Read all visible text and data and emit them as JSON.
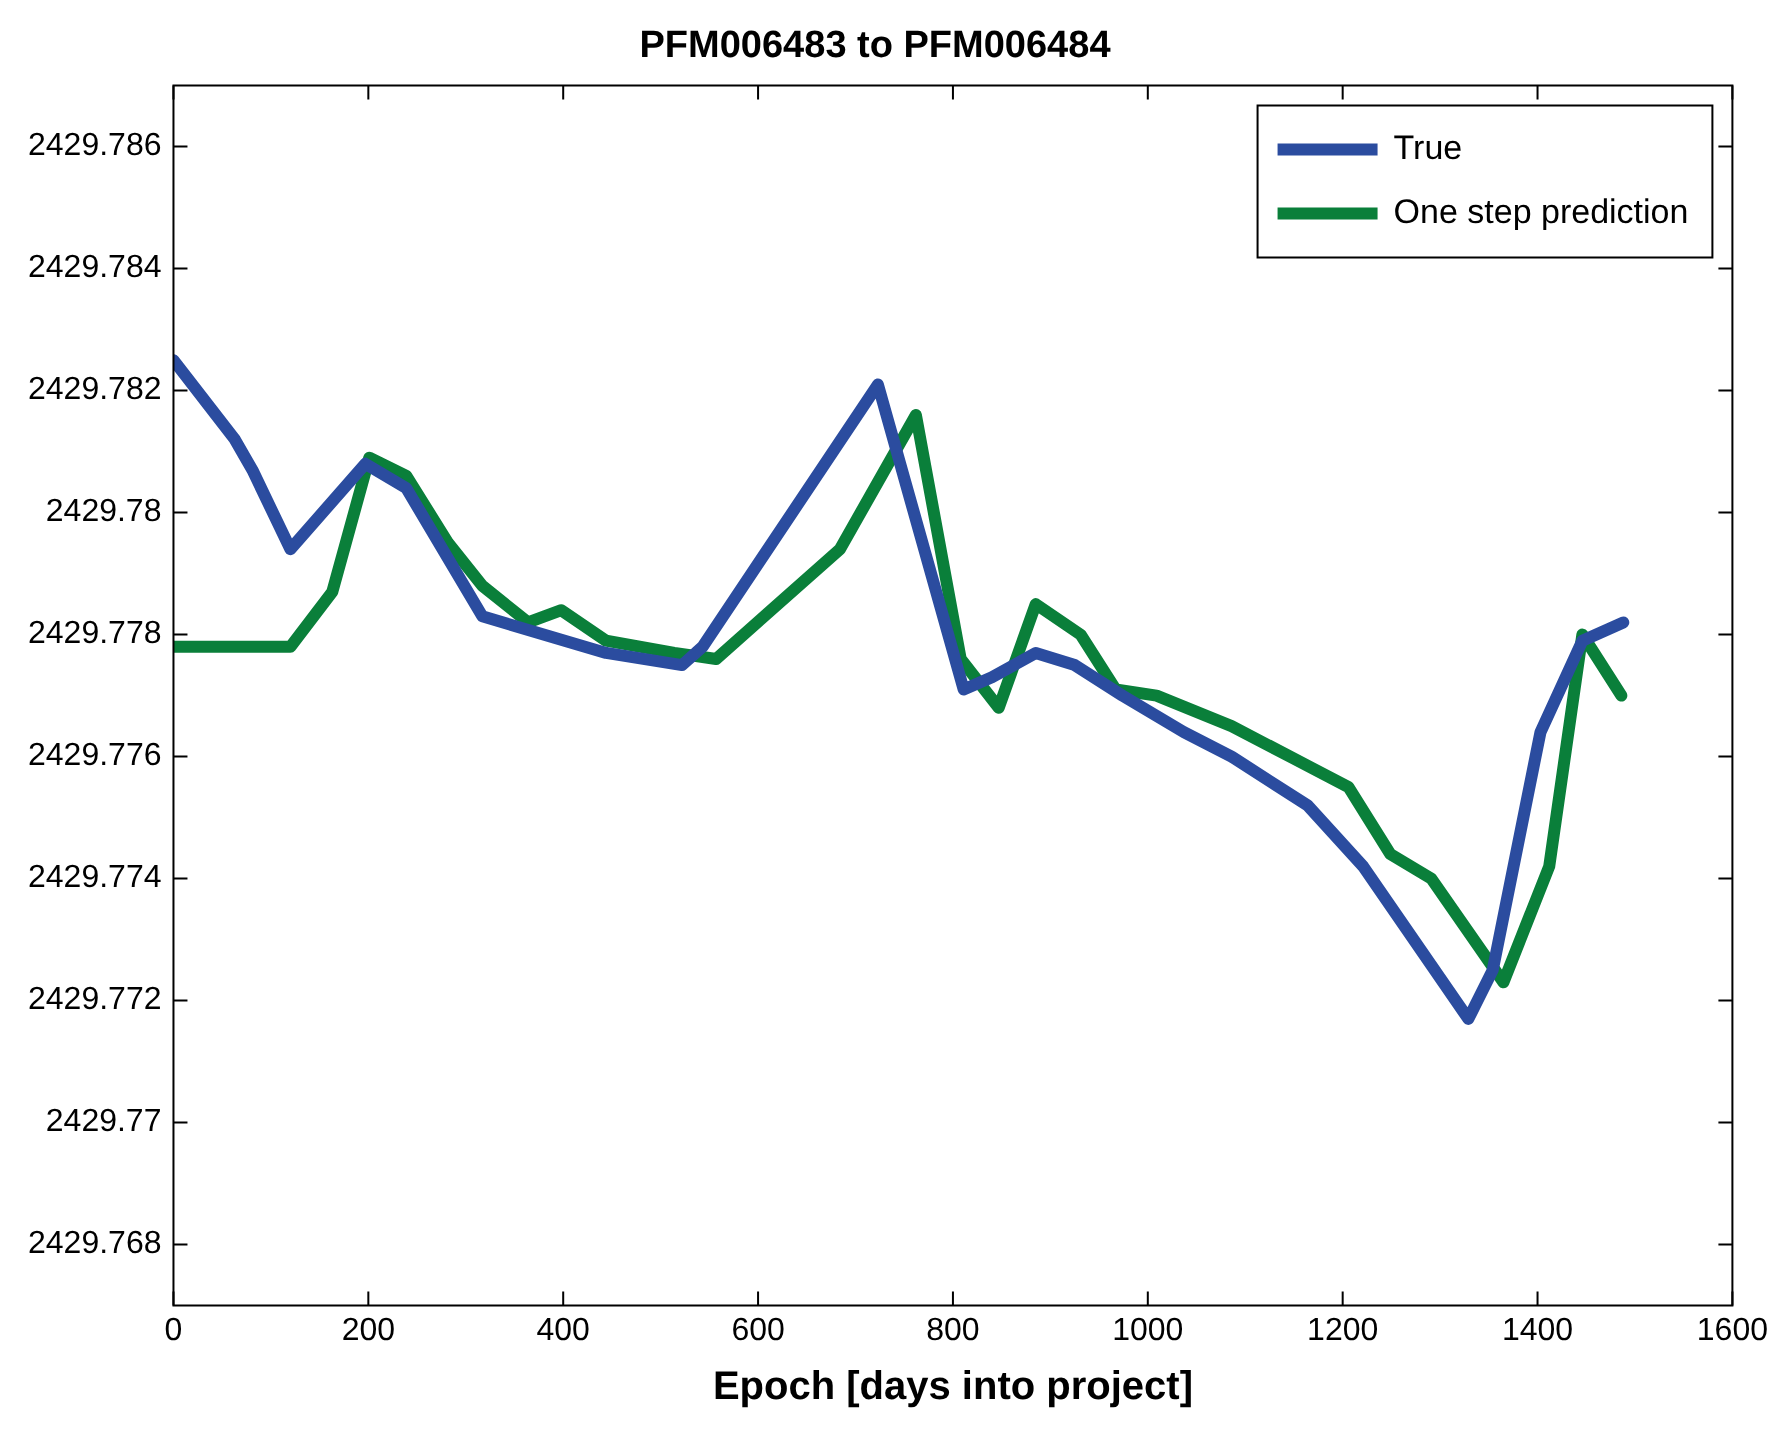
{
  "chart_data": {
    "type": "line",
    "title": "PFM006483 to PFM006484",
    "xlabel": "Epoch [days into project]",
    "xlim": [
      0,
      1600
    ],
    "xticks": [
      0,
      200,
      400,
      600,
      800,
      1000,
      1200,
      1400,
      1600
    ],
    "ylim": [
      2429.767,
      2429.787
    ],
    "yticks": [
      2429.768,
      2429.77,
      2429.772,
      2429.774,
      2429.776,
      2429.778,
      2429.78,
      2429.782,
      2429.784,
      2429.786
    ],
    "grid": false,
    "legend": "top right",
    "marker": "none",
    "line_style": "solid",
    "series": [
      {
        "name": "True",
        "color": "#2b4c9f",
        "x": [
          0,
          63,
          81,
          120,
          197,
          239,
          317,
          444,
          522,
          543,
          723,
          811,
          840,
          885,
          925,
          974,
          1037,
          1086,
          1164,
          1221,
          1329,
          1354,
          1403,
          1446,
          1488
        ],
        "values": [
          2429.7825,
          2429.7812,
          2429.7807,
          2429.7794,
          2429.7808,
          2429.7804,
          2429.7783,
          2429.7777,
          2429.7775,
          2429.7778,
          2429.7821,
          2429.7771,
          2429.7773,
          2429.7777,
          2429.7775,
          2429.777,
          2429.7764,
          2429.776,
          2429.7752,
          2429.7742,
          2429.7717,
          2429.7725,
          2429.7764,
          2429.7779,
          2429.7782
        ]
      },
      {
        "name": "One step prediction",
        "color": "#0a7f3a",
        "x": [
          0,
          120,
          163,
          201,
          239,
          282,
          317,
          364,
          398,
          444,
          514,
          557,
          684,
          762,
          808,
          847,
          885,
          931,
          967,
          1009,
          1086,
          1206,
          1249,
          1291,
          1365,
          1412,
          1446,
          1486
        ],
        "values": [
          2429.7778,
          2429.7778,
          2429.7787,
          2429.7809,
          2429.7806,
          2429.7795,
          2429.7788,
          2429.7782,
          2429.7784,
          2429.7779,
          2429.7777,
          2429.7776,
          2429.7794,
          2429.7816,
          2429.7776,
          2429.7768,
          2429.7785,
          2429.778,
          2429.7771,
          2429.777,
          2429.7765,
          2429.7755,
          2429.7744,
          2429.774,
          2429.7723,
          2429.7742,
          2429.778,
          2429.777
        ]
      }
    ]
  }
}
